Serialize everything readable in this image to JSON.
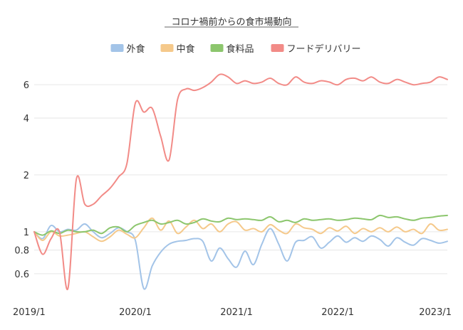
{
  "chart_data": {
    "type": "line",
    "title": "コロナ禍前からの食市場動向",
    "xlabel": "",
    "ylabel": "",
    "y_scale": "log",
    "ylim": [
      0.45,
      8.0
    ],
    "y_ticks": [
      0.6,
      0.8,
      1,
      2,
      4,
      6
    ],
    "y_tick_labels": [
      "0.6",
      "0.8",
      "1",
      "2",
      "4",
      "6"
    ],
    "x_ticks": [
      0,
      12,
      24,
      36,
      48
    ],
    "x_tick_labels": [
      "2019/1",
      "2020/1",
      "2021/1",
      "2022/1",
      "2023/1"
    ],
    "x": [
      "2019/1",
      "2019/2",
      "2019/3",
      "2019/4",
      "2019/5",
      "2019/6",
      "2019/7",
      "2019/8",
      "2019/9",
      "2019/10",
      "2019/11",
      "2019/12",
      "2020/1",
      "2020/2",
      "2020/3",
      "2020/4",
      "2020/5",
      "2020/6",
      "2020/7",
      "2020/8",
      "2020/9",
      "2020/10",
      "2020/11",
      "2020/12",
      "2021/1",
      "2021/2",
      "2021/3",
      "2021/4",
      "2021/5",
      "2021/6",
      "2021/7",
      "2021/8",
      "2021/9",
      "2021/10",
      "2021/11",
      "2021/12",
      "2022/1",
      "2022/2",
      "2022/3",
      "2022/4",
      "2022/5",
      "2022/6",
      "2022/7",
      "2022/8",
      "2022/9",
      "2022/10",
      "2022/11",
      "2022/12",
      "2023/1",
      "2023/2"
    ],
    "legend_position": "top",
    "grid": true,
    "series": [
      {
        "name": "外食",
        "color": "#a3c4e8",
        "values": [
          1.0,
          0.92,
          1.08,
          1.0,
          1.03,
          1.02,
          1.1,
          1.0,
          0.93,
          0.98,
          1.05,
          1.0,
          0.9,
          0.5,
          0.66,
          0.78,
          0.86,
          0.89,
          0.9,
          0.92,
          0.89,
          0.7,
          0.82,
          0.72,
          0.65,
          0.79,
          0.67,
          0.86,
          1.04,
          0.86,
          0.7,
          0.88,
          0.9,
          0.94,
          0.82,
          0.88,
          0.95,
          0.88,
          0.93,
          0.89,
          0.95,
          0.91,
          0.84,
          0.93,
          0.88,
          0.85,
          0.92,
          0.9,
          0.87,
          0.89
        ]
      },
      {
        "name": "中食",
        "color": "#f5c98b",
        "values": [
          1.0,
          0.9,
          1.0,
          0.95,
          0.96,
          0.98,
          1.0,
          0.94,
          0.89,
          0.94,
          1.02,
          0.97,
          0.93,
          1.05,
          1.18,
          1.02,
          1.14,
          0.98,
          1.06,
          1.15,
          1.04,
          1.1,
          1.0,
          1.1,
          1.13,
          1.02,
          1.04,
          1.0,
          1.09,
          1.02,
          0.98,
          1.1,
          1.05,
          1.03,
          0.98,
          1.05,
          1.01,
          1.07,
          0.98,
          1.04,
          1.0,
          1.05,
          1.0,
          1.06,
          1.0,
          1.03,
          0.98,
          1.1,
          1.02,
          1.03
        ]
      },
      {
        "name": "食料品",
        "color": "#8cc66d",
        "values": [
          1.0,
          0.96,
          1.01,
          0.98,
          1.02,
          1.0,
          1.0,
          1.02,
          0.98,
          1.05,
          1.06,
          1.0,
          1.08,
          1.12,
          1.15,
          1.1,
          1.12,
          1.15,
          1.1,
          1.12,
          1.17,
          1.14,
          1.13,
          1.18,
          1.16,
          1.17,
          1.16,
          1.15,
          1.2,
          1.13,
          1.15,
          1.12,
          1.17,
          1.15,
          1.16,
          1.17,
          1.15,
          1.16,
          1.18,
          1.17,
          1.16,
          1.22,
          1.19,
          1.2,
          1.17,
          1.15,
          1.18,
          1.19,
          1.21,
          1.22
        ]
      },
      {
        "name": "フードデリバリー",
        "color": "#f28b87",
        "values": [
          1.0,
          0.76,
          0.92,
          1.0,
          0.5,
          1.9,
          1.4,
          1.4,
          1.55,
          1.7,
          1.95,
          2.3,
          4.8,
          4.3,
          4.5,
          3.2,
          2.4,
          5.0,
          5.7,
          5.6,
          5.8,
          6.2,
          6.8,
          6.6,
          6.1,
          6.3,
          6.1,
          6.2,
          6.5,
          6.1,
          6.0,
          6.6,
          6.2,
          6.1,
          6.3,
          6.2,
          6.0,
          6.4,
          6.5,
          6.3,
          6.6,
          6.2,
          6.1,
          6.4,
          6.2,
          6.0,
          6.1,
          6.2,
          6.6,
          6.4
        ]
      }
    ]
  }
}
